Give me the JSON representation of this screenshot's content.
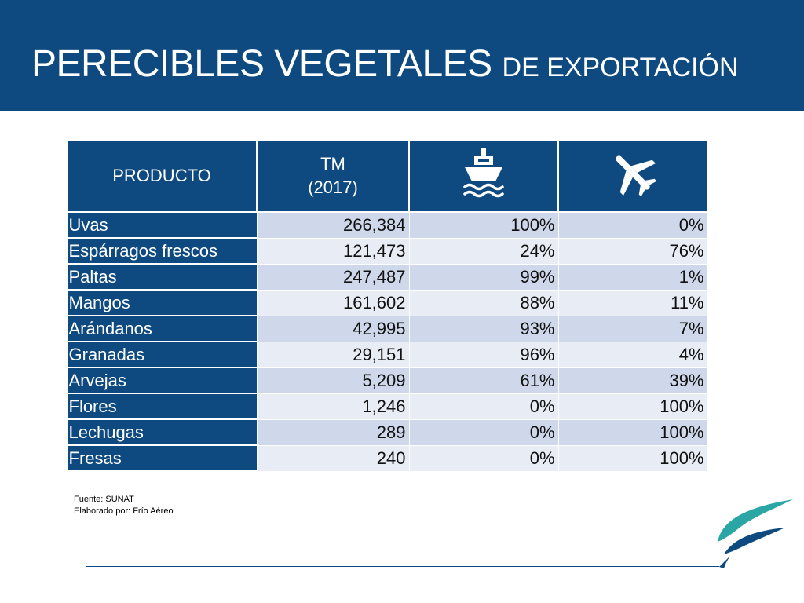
{
  "slide": {
    "title_main": "PERECIBLES VEGETALES",
    "title_small": "DE EXPORTACIÓN"
  },
  "table": {
    "headers": {
      "product": "PRODUCTO",
      "tm_line1": "TM",
      "tm_line2": "(2017)",
      "sea_icon": "ship-icon",
      "air_icon": "airplane-icon"
    },
    "rows": [
      {
        "product": "Uvas",
        "tm": "266,384",
        "sea": "100%",
        "air": "0%"
      },
      {
        "product": "Espárragos frescos",
        "tm": "121,473",
        "sea": "24%",
        "air": "76%"
      },
      {
        "product": "Paltas",
        "tm": "247,487",
        "sea": "99%",
        "air": "1%"
      },
      {
        "product": "Mangos",
        "tm": "161,602",
        "sea": "88%",
        "air": "11%"
      },
      {
        "product": "Arándanos",
        "tm": "42,995",
        "sea": "93%",
        "air": "7%"
      },
      {
        "product": "Granadas",
        "tm": "29,151",
        "sea": "96%",
        "air": "4%"
      },
      {
        "product": "Arvejas",
        "tm": "5,209",
        "sea": "61%",
        "air": "39%"
      },
      {
        "product": "Flores",
        "tm": "1,246",
        "sea": "0%",
        "air": "100%"
      },
      {
        "product": "Lechugas",
        "tm": "289",
        "sea": "0%",
        "air": "100%"
      },
      {
        "product": "Fresas",
        "tm": "240",
        "sea": "0%",
        "air": "100%"
      }
    ]
  },
  "footnote": {
    "source": "Fuente: SUNAT",
    "author": "Elaborado por: Frío Aéreo"
  },
  "colors": {
    "brand_navy": "#0e4a7f",
    "row_light": "#cfd8ea",
    "row_lighter": "#e8ecf5",
    "logo_teal": "#2aa6a4"
  }
}
